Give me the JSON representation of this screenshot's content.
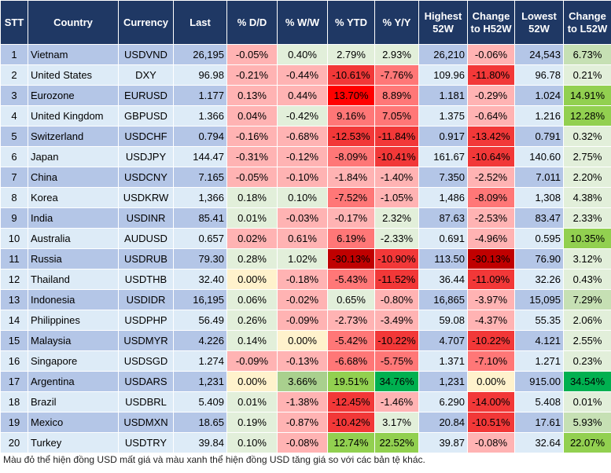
{
  "headers": [
    "STT",
    "Country",
    "Currency",
    "Last",
    "% D/D",
    "% W/W",
    "% YTD",
    "% Y/Y",
    "Highest 52W",
    "Change to H52W",
    "Lowest 52W",
    "Change to L52W"
  ],
  "colors": {
    "header": "#1f3864",
    "row_odd": "#b4c6e7",
    "row_even": "#ddebf7",
    "r1": "#ffb3b3",
    "r2": "#ff7777",
    "r3": "#f23838",
    "r4": "#ff0000",
    "r5": "#c00000",
    "g1": "#e2efda",
    "g2": "#c6e0b4",
    "g3": "#a9d08e",
    "g4": "#92d050",
    "g5": "#00b050",
    "y": "#fff2cc"
  },
  "rows": [
    [
      "1",
      "Vietnam",
      "USDVND",
      "26,195",
      "-0.05%",
      "0.40%",
      "2.79%",
      "2.93%",
      "26,210",
      "-0.06%",
      "24,543",
      "6.73%"
    ],
    [
      "2",
      "United States",
      "DXY",
      "96.98",
      "-0.21%",
      "-0.44%",
      "-10.61%",
      "-7.76%",
      "109.96",
      "-11.80%",
      "96.78",
      "0.21%"
    ],
    [
      "3",
      "Eurozone",
      "EURUSD",
      "1.177",
      "0.13%",
      "0.44%",
      "13.70%",
      "8.89%",
      "1.181",
      "-0.29%",
      "1.024",
      "14.91%"
    ],
    [
      "4",
      "United Kingdom",
      "GBPUSD",
      "1.366",
      "0.04%",
      "-0.42%",
      "9.16%",
      "7.05%",
      "1.375",
      "-0.64%",
      "1.216",
      "12.28%"
    ],
    [
      "5",
      "Switzerland",
      "USDCHF",
      "0.794",
      "-0.16%",
      "-0.68%",
      "-12.53%",
      "-11.84%",
      "0.917",
      "-13.42%",
      "0.791",
      "0.32%"
    ],
    [
      "6",
      "Japan",
      "USDJPY",
      "144.47",
      "-0.31%",
      "-0.12%",
      "-8.09%",
      "-10.41%",
      "161.67",
      "-10.64%",
      "140.60",
      "2.75%"
    ],
    [
      "7",
      "China",
      "USDCNY",
      "7.165",
      "-0.05%",
      "-0.10%",
      "-1.84%",
      "-1.40%",
      "7.350",
      "-2.52%",
      "7.011",
      "2.20%"
    ],
    [
      "8",
      "Korea",
      "USDKRW",
      "1,366",
      "0.18%",
      "0.10%",
      "-7.52%",
      "-1.05%",
      "1,486",
      "-8.09%",
      "1,308",
      "4.38%"
    ],
    [
      "9",
      "India",
      "USDINR",
      "85.41",
      "0.01%",
      "-0.03%",
      "-0.17%",
      "2.32%",
      "87.63",
      "-2.53%",
      "83.47",
      "2.33%"
    ],
    [
      "10",
      "Australia",
      "AUDUSD",
      "0.657",
      "0.02%",
      "0.61%",
      "6.19%",
      "-2.33%",
      "0.691",
      "-4.96%",
      "0.595",
      "10.35%"
    ],
    [
      "11",
      "Russia",
      "USDRUB",
      "79.30",
      "0.28%",
      "1.02%",
      "-30.13%",
      "-10.90%",
      "113.50",
      "-30.13%",
      "76.90",
      "3.12%"
    ],
    [
      "12",
      "Thailand",
      "USDTHB",
      "32.40",
      "0.00%",
      "-0.18%",
      "-5.43%",
      "-11.52%",
      "36.44",
      "-11.09%",
      "32.26",
      "0.43%"
    ],
    [
      "13",
      "Indonesia",
      "USDIDR",
      "16,195",
      "0.06%",
      "-0.02%",
      "0.65%",
      "-0.80%",
      "16,865",
      "-3.97%",
      "15,095",
      "7.29%"
    ],
    [
      "14",
      "Philippines",
      "USDPHP",
      "56.49",
      "0.26%",
      "-0.09%",
      "-2.73%",
      "-3.49%",
      "59.08",
      "-4.37%",
      "55.35",
      "2.06%"
    ],
    [
      "15",
      "Malaysia",
      "USDMYR",
      "4.226",
      "0.14%",
      "0.00%",
      "-5.42%",
      "-10.22%",
      "4.707",
      "-10.22%",
      "4.121",
      "2.55%"
    ],
    [
      "16",
      "Singapore",
      "USDSGD",
      "1.274",
      "-0.09%",
      "-0.13%",
      "-6.68%",
      "-5.75%",
      "1.371",
      "-7.10%",
      "1.271",
      "0.23%"
    ],
    [
      "17",
      "Argentina",
      "USDARS",
      "1,231",
      "0.00%",
      "3.66%",
      "19.51%",
      "34.76%",
      "1,231",
      "0.00%",
      "915.00",
      "34.54%"
    ],
    [
      "18",
      "Brazil",
      "USDBRL",
      "5.409",
      "0.01%",
      "-1.38%",
      "-12.45%",
      "-1.46%",
      "6.290",
      "-14.00%",
      "5.408",
      "0.01%"
    ],
    [
      "19",
      "Mexico",
      "USDMXN",
      "18.65",
      "0.19%",
      "-0.87%",
      "-10.42%",
      "3.17%",
      "20.84",
      "-10.51%",
      "17.61",
      "5.93%"
    ],
    [
      "20",
      "Turkey",
      "USDTRY",
      "39.84",
      "0.10%",
      "-0.08%",
      "12.74%",
      "22.52%",
      "39.87",
      "-0.08%",
      "32.64",
      "22.07%"
    ]
  ],
  "cell_colors": [
    [
      "r1",
      "g1",
      "g1",
      "g1",
      "r1",
      "g2"
    ],
    [
      "r1",
      "r1",
      "r3",
      "r2",
      "r3",
      "g1"
    ],
    [
      "r1",
      "r1",
      "r4",
      "r2",
      "r1",
      "g4"
    ],
    [
      "r1",
      "g1",
      "r2",
      "r2",
      "r1",
      "g4"
    ],
    [
      "r1",
      "r1",
      "r3",
      "r3",
      "r3",
      "g1"
    ],
    [
      "r1",
      "r1",
      "r2",
      "r3",
      "r3",
      "g1"
    ],
    [
      "r1",
      "r1",
      "r1",
      "r1",
      "r1",
      "g1"
    ],
    [
      "g1",
      "g1",
      "r2",
      "r1",
      "r2",
      "g1"
    ],
    [
      "g1",
      "r1",
      "r1",
      "g1",
      "r1",
      "g1"
    ],
    [
      "r1",
      "r1",
      "r2",
      "g1",
      "r1",
      "g4"
    ],
    [
      "g1",
      "g1",
      "r5",
      "r3",
      "r5",
      "g1"
    ],
    [
      "y",
      "r1",
      "r2",
      "r3",
      "r3",
      "g1"
    ],
    [
      "g1",
      "r1",
      "g1",
      "r1",
      "r1",
      "g2"
    ],
    [
      "g1",
      "r1",
      "r1",
      "r1",
      "r1",
      "g1"
    ],
    [
      "g1",
      "y",
      "r2",
      "r3",
      "r3",
      "g1"
    ],
    [
      "r1",
      "r1",
      "r2",
      "r2",
      "r2",
      "g1"
    ],
    [
      "y",
      "g3",
      "g4",
      "g5",
      "y",
      "g5"
    ],
    [
      "g1",
      "r1",
      "r3",
      "r1",
      "r3",
      "g1"
    ],
    [
      "g1",
      "r1",
      "r3",
      "g1",
      "r3",
      "g2"
    ],
    [
      "g1",
      "r1",
      "g4",
      "g4",
      "r1",
      "g4"
    ]
  ],
  "note": "Màu đỏ thể hiện đồng USD mất giá và màu xanh thể hiện đồng USD tăng giá so với các bản tệ khác."
}
